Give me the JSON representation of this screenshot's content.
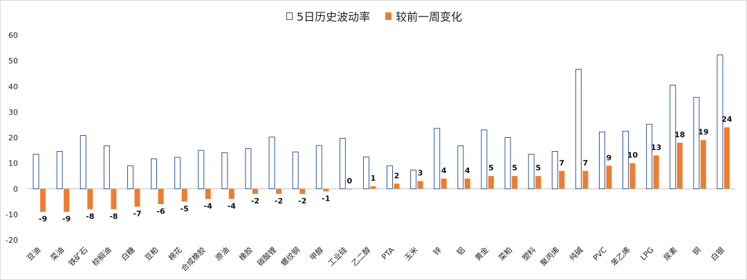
{
  "legend": {
    "series1": "5日历史波动率",
    "series2": "较前一周变化"
  },
  "colors": {
    "hist_border": "#2f5597",
    "change_fill": "#ed7d31"
  },
  "chart_data": {
    "type": "bar",
    "categories": [
      "豆油",
      "菜油",
      "铁矿石",
      "棕榈油",
      "白糖",
      "豆粕",
      "棉花",
      "合成橡胶",
      "原油",
      "橡胶",
      "碳酸锂",
      "螺纹钢",
      "甲醇",
      "工业硅",
      "乙二醇",
      "PTA",
      "玉米",
      "锌",
      "铝",
      "黄金",
      "菜粕",
      "塑料",
      "聚丙烯",
      "纯碱",
      "PVC",
      "苯乙烯",
      "LPG",
      "尿素",
      "铜",
      "白银"
    ],
    "series": [
      {
        "name": "5日历史波动率",
        "values": [
          13.5,
          14.6,
          20.8,
          16.8,
          9.0,
          11.7,
          12.3,
          15.0,
          14.1,
          15.7,
          20.2,
          14.4,
          16.9,
          19.7,
          12.4,
          9.0,
          7.3,
          23.6,
          16.8,
          23.0,
          20.0,
          13.5,
          14.6,
          46.7,
          22.2,
          22.5,
          25.2,
          40.5,
          35.7,
          52.3
        ]
      },
      {
        "name": "较前一周变化",
        "values": [
          -9,
          -9,
          -8,
          -8,
          -7,
          -6,
          -5,
          -4,
          -4,
          -2,
          -2,
          -2,
          -1,
          0,
          1,
          2,
          3,
          4,
          4,
          5,
          5,
          5,
          7,
          7,
          9,
          10,
          13,
          18,
          19,
          24
        ]
      }
    ],
    "change_labels": [
      "-9",
      "-9",
      "-8",
      "-8",
      "-7",
      "-6",
      "-5",
      "-4",
      "-4",
      "-2",
      "-2",
      "-2",
      "-1",
      "0",
      "1",
      "2",
      "3",
      "4",
      "4",
      "5",
      "5",
      "5",
      "7",
      "7",
      "9",
      "10",
      "13",
      "18",
      "19",
      "24"
    ],
    "ylim": [
      -20,
      60
    ],
    "yticks": [
      -20,
      -10,
      0,
      10,
      20,
      30,
      40,
      50,
      60
    ],
    "grid": false,
    "legend_position": "top"
  }
}
